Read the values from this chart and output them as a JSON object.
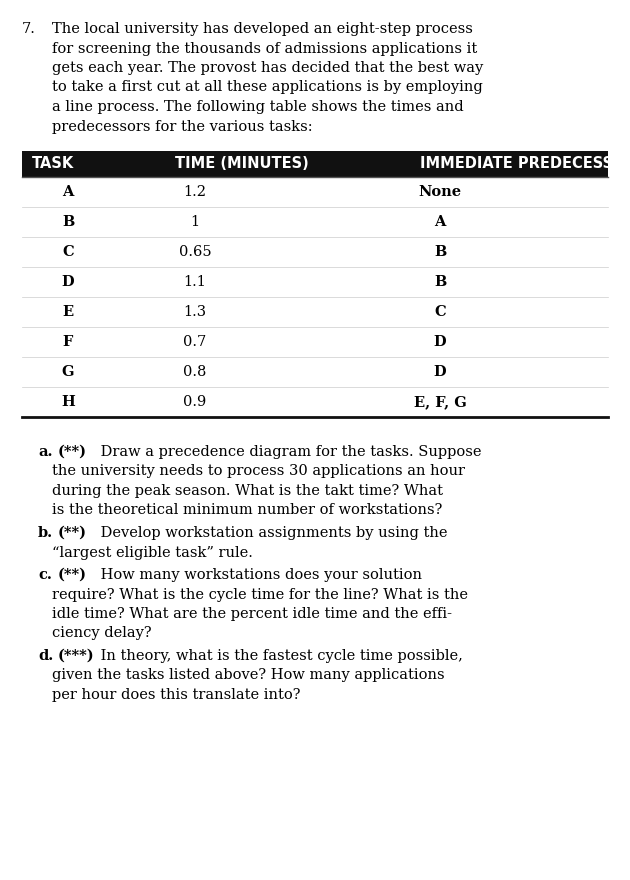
{
  "question_number": "7.",
  "intro_text": [
    "The local university has developed an eight-step process",
    "for screening the thousands of admissions applications it",
    "gets each year. The provost has decided that the best way",
    "to take a first cut at all these applications is by employing",
    "a line process. The following table shows the times and",
    "predecessors for the various tasks:"
  ],
  "table_header": [
    "TASK",
    "TIME (MINUTES)",
    "IMMEDIATE PREDECESSOR"
  ],
  "table_rows": [
    [
      "A",
      "1.2",
      "None"
    ],
    [
      "B",
      "1",
      "A"
    ],
    [
      "C",
      "0.65",
      "B"
    ],
    [
      "D",
      "1.1",
      "B"
    ],
    [
      "E",
      "1.3",
      "C"
    ],
    [
      "F",
      "0.7",
      "D"
    ],
    [
      "G",
      "0.8",
      "D"
    ],
    [
      "H",
      "0.9",
      "E, F, G"
    ]
  ],
  "header_bg": "#111111",
  "header_fg": "#ffffff",
  "subquestions": [
    {
      "label": "a.",
      "bold_part": "(**)",
      "lines": [
        " Draw a precedence diagram for the tasks. Suppose",
        "the university needs to process 30 applications an hour",
        "during the peak season. What is the takt time? What",
        "is the theoretical minimum number of workstations?"
      ]
    },
    {
      "label": "b.",
      "bold_part": "(**)",
      "lines": [
        " Develop workstation assignments by using the",
        "“largest eligible task” rule."
      ]
    },
    {
      "label": "c.",
      "bold_part": "(**)",
      "lines": [
        " How many workstations does your solution",
        "require? What is the cycle time for the line? What is the",
        "idle time? What are the percent idle time and the effi-",
        "ciency delay?"
      ]
    },
    {
      "label": "d.",
      "bold_part": "(***)",
      "lines": [
        " In theory, what is the fastest cycle time possible,",
        "given the tasks listed above? How many applications",
        "per hour does this translate into?"
      ]
    }
  ],
  "page_bg": "#ffffff",
  "text_color": "#000000",
  "font_size_body": 10.5,
  "font_size_table_header": 10.5,
  "font_size_table_body": 10.5
}
